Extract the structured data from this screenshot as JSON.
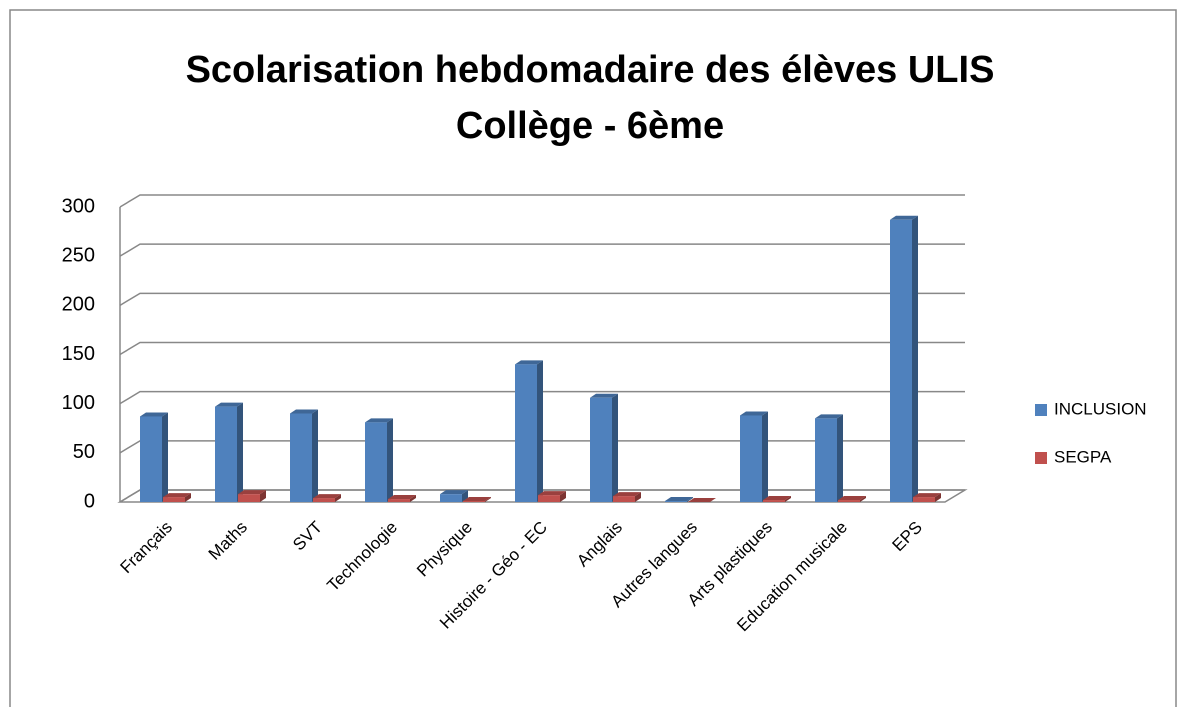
{
  "chart_data": {
    "type": "bar3d",
    "title": "Scolarisation hebdomadaire des élèves ULIS",
    "subtitle": "Collège - 6ème",
    "categories": [
      "Français",
      "Maths",
      "SVT",
      "Technologie",
      "Physique",
      "Histoire - Géo - EC",
      "Anglais",
      "Autres langues",
      "Arts plastiques",
      "Education musicale",
      "EPS"
    ],
    "series": [
      {
        "name": "INCLUSION",
        "color": "#4f81bd",
        "values": [
          87,
          97,
          90,
          81,
          8,
          140,
          106,
          1,
          88,
          85,
          287
        ]
      },
      {
        "name": "SEGPA",
        "color": "#c0504d",
        "values": [
          5,
          8,
          4,
          3,
          1,
          7,
          6,
          0,
          2,
          2,
          5
        ]
      }
    ],
    "ylim": [
      0,
      300
    ],
    "yticks": [
      0,
      50,
      100,
      150,
      200,
      250,
      300
    ],
    "grid": true,
    "legend": "right"
  }
}
